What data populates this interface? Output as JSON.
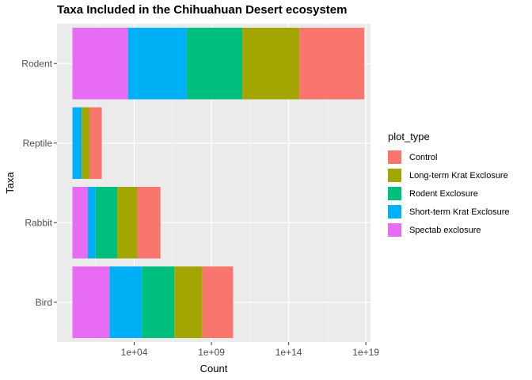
{
  "chart_data": {
    "type": "bar",
    "stacked": true,
    "orientation": "horizontal",
    "title": "Taxa Included in the Chihuahuan Desert ecosystem",
    "xlabel": "Count",
    "ylabel": "Taxa",
    "x_scale": "log10",
    "xlim_log10": [
      -1.0,
      19.3
    ],
    "x_ticks": [
      {
        "label": "1e+04",
        "log10": 4
      },
      {
        "label": "1e+09",
        "log10": 9
      },
      {
        "label": "1e+14",
        "log10": 14
      },
      {
        "label": "1e+19",
        "log10": 19
      }
    ],
    "categories": [
      "Bird",
      "Rabbit",
      "Reptile",
      "Rodent"
    ],
    "series": [
      {
        "name": "Spectab exclosure",
        "color": "#E76BF3",
        "log10_end": [
          2.4,
          1.0,
          0.0,
          3.6
        ]
      },
      {
        "name": "Short-term Krat Exclosure",
        "color": "#00B0F6",
        "log10_end": [
          4.5,
          1.5,
          0.6,
          7.4
        ]
      },
      {
        "name": "Rodent Exclosure",
        "color": "#00BF7D",
        "log10_end": [
          6.6,
          2.9,
          0.6,
          11.0
        ]
      },
      {
        "name": "Long-term Krat Exclosure",
        "color": "#A3A500",
        "log10_end": [
          8.4,
          4.2,
          1.1,
          14.7
        ]
      },
      {
        "name": "Control",
        "color": "#F8766D",
        "log10_end": [
          10.4,
          5.7,
          1.9,
          18.9
        ]
      }
    ],
    "legend_title": "plot_type",
    "legend_order": [
      "Control",
      "Long-term Krat Exclosure",
      "Rodent Exclosure",
      "Short-term Krat Exclosure",
      "Spectab exclosure"
    ],
    "legend_position": "right",
    "grid": true
  }
}
